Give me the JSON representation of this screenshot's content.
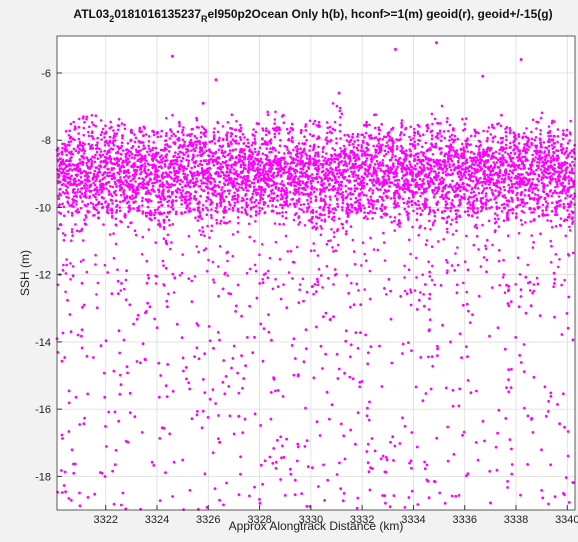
{
  "figure": {
    "background": "#f2f2f2",
    "axes_background": "#ffffff",
    "grid_color": "#dcdcdc",
    "axis_color": "#333333"
  },
  "chart_data": {
    "type": "scatter",
    "title": {
      "prefix": "ATL03",
      "sub1": "2",
      "middle": "0181016135237",
      "sub2": "R",
      "suffix": "el950p2Ocean Only h(b), hconf>=1(m) geoid(r), geoid+/-15(g)"
    },
    "xlabel": "Approx Alongtrack Distance (km)",
    "ylabel": "SSH (m)",
    "xlim": [
      3320.1,
      3340.3
    ],
    "ylim": [
      -19.0,
      -4.9
    ],
    "xticks": [
      3322,
      3324,
      3326,
      3328,
      3330,
      3332,
      3334,
      3336,
      3338,
      3340
    ],
    "yticks": [
      -18,
      -16,
      -14,
      -12,
      -10,
      -8,
      -6
    ],
    "grid": true,
    "series": [
      {
        "marker_color": "#ff00ff",
        "description_points": "dense SSH returns around -9 m with spikes up to ~-6.5 m and dips to ~-12 m, plus sparse scattered points between -19 and -12 m",
        "band_envelope": {
          "x": [
            3320.1,
            3320.5,
            3321.0,
            3321.5,
            3322.0,
            3322.5,
            3323.0,
            3323.5,
            3324.0,
            3324.5,
            3325.0,
            3325.5,
            3326.0,
            3326.5,
            3327.0,
            3327.5,
            3328.0,
            3328.5,
            3329.0,
            3329.5,
            3330.0,
            3330.5,
            3331.0,
            3331.5,
            3332.0,
            3332.5,
            3333.0,
            3333.5,
            3334.0,
            3334.5,
            3335.0,
            3335.5,
            3336.0,
            3336.5,
            3337.0,
            3337.5,
            3338.0,
            3338.5,
            3339.0,
            3339.5,
            3340.3
          ],
          "upper": [
            -8.3,
            -7.6,
            -7.3,
            -7.2,
            -7.5,
            -7.3,
            -7.7,
            -7.6,
            -7.8,
            -7.0,
            -7.4,
            -7.3,
            -7.8,
            -7.1,
            -7.2,
            -7.9,
            -7.4,
            -7.0,
            -7.3,
            -7.7,
            -7.4,
            -7.5,
            -6.7,
            -7.9,
            -7.6,
            -7.2,
            -7.8,
            -7.4,
            -7.5,
            -7.6,
            -6.7,
            -7.7,
            -7.3,
            -7.8,
            -7.6,
            -7.2,
            -7.9,
            -7.5,
            -7.0,
            -7.4,
            -7.3
          ],
          "lower": [
            -10.6,
            -11.2,
            -11.0,
            -10.4,
            -10.2,
            -10.6,
            -10.0,
            -10.2,
            -10.5,
            -11.3,
            -10.1,
            -10.3,
            -11.5,
            -10.4,
            -10.6,
            -10.2,
            -10.4,
            -10.1,
            -10.3,
            -10.5,
            -10.6,
            -11.0,
            -11.6,
            -10.1,
            -10.3,
            -10.4,
            -10.2,
            -10.6,
            -10.5,
            -10.0,
            -11.7,
            -10.4,
            -10.2,
            -10.3,
            -10.9,
            -10.4,
            -10.3,
            -10.5,
            -10.2,
            -10.6,
            -10.4
          ]
        },
        "outliers": [
          {
            "x": 3324.6,
            "y": -5.5
          },
          {
            "x": 3325.8,
            "y": -6.9
          },
          {
            "x": 3326.3,
            "y": -6.2
          },
          {
            "x": 3333.3,
            "y": -5.3
          },
          {
            "x": 3334.9,
            "y": -5.1
          },
          {
            "x": 3336.7,
            "y": -6.1
          },
          {
            "x": 3338.2,
            "y": -5.6
          },
          {
            "x": 3331.1,
            "y": -6.6
          }
        ]
      }
    ]
  }
}
